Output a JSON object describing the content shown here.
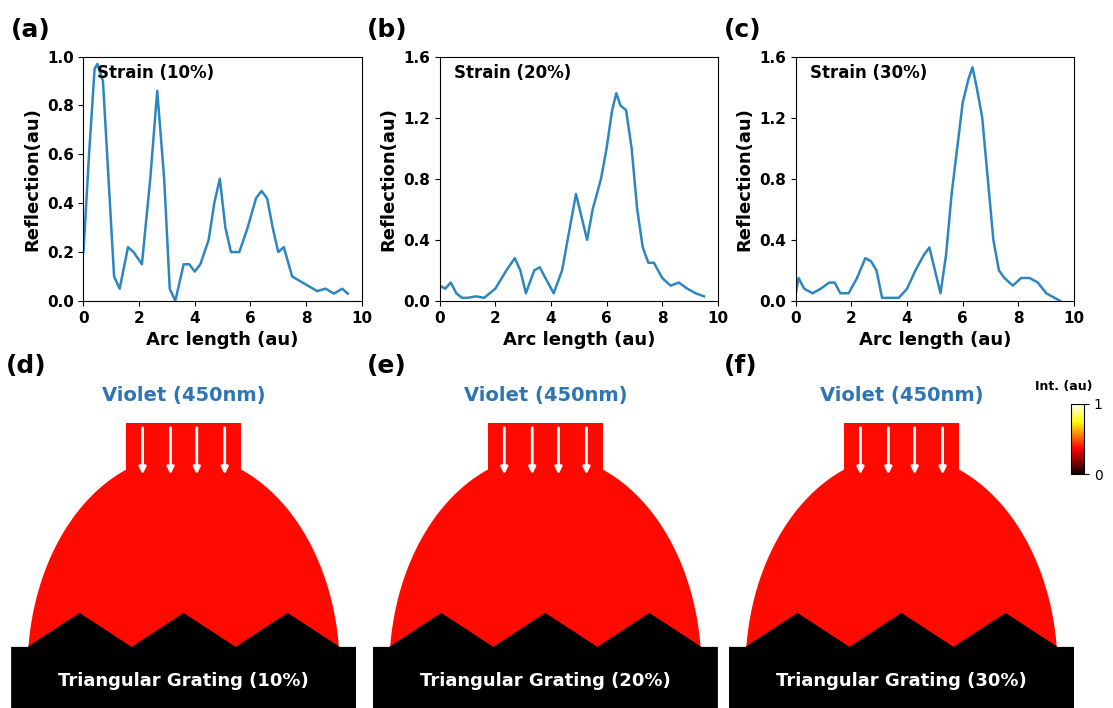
{
  "chart_data": [
    {
      "type": "line",
      "panel": "(a)",
      "annotation": "Strain (10%)",
      "x_label": "Arc length (au)",
      "y_label": "Reflection(au)",
      "xlim": [
        0,
        10
      ],
      "xticks": [
        0,
        2,
        4,
        6,
        8,
        10
      ],
      "ylim": [
        0,
        1.0
      ],
      "yticks": [
        0.0,
        0.2,
        0.4,
        0.6,
        0.8,
        1.0
      ],
      "series": [
        {
          "color": "#2e86c1",
          "x": [
            0,
            0.2,
            0.4,
            0.5,
            0.7,
            0.9,
            1.1,
            1.3,
            1.6,
            1.8,
            2.1,
            2.4,
            2.65,
            2.9,
            3.1,
            3.3,
            3.6,
            3.8,
            4.0,
            4.2,
            4.5,
            4.7,
            4.9,
            5.1,
            5.3,
            5.6,
            5.9,
            6.2,
            6.4,
            6.6,
            6.8,
            7.0,
            7.2,
            7.5,
            7.8,
            8.1,
            8.4,
            8.7,
            9.0,
            9.3,
            9.5
          ],
          "values": [
            0.2,
            0.6,
            0.95,
            0.97,
            0.9,
            0.5,
            0.1,
            0.05,
            0.22,
            0.2,
            0.15,
            0.5,
            0.86,
            0.5,
            0.05,
            0.0,
            0.15,
            0.15,
            0.12,
            0.15,
            0.25,
            0.4,
            0.5,
            0.3,
            0.2,
            0.2,
            0.3,
            0.42,
            0.45,
            0.42,
            0.3,
            0.2,
            0.22,
            0.1,
            0.08,
            0.06,
            0.04,
            0.05,
            0.03,
            0.05,
            0.03
          ]
        }
      ]
    },
    {
      "type": "line",
      "panel": "(b)",
      "annotation": "Strain (20%)",
      "x_label": "Arc length (au)",
      "y_label": "Reflection(au)",
      "xlim": [
        0,
        10
      ],
      "xticks": [
        0,
        2,
        4,
        6,
        8,
        10
      ],
      "ylim": [
        0,
        1.6
      ],
      "yticks": [
        0.0,
        0.4,
        0.8,
        1.2,
        1.6
      ],
      "series": [
        {
          "color": "#2e86c1",
          "x": [
            0,
            0.2,
            0.4,
            0.6,
            0.8,
            1.0,
            1.3,
            1.6,
            2.0,
            2.4,
            2.7,
            2.9,
            3.1,
            3.4,
            3.6,
            3.8,
            4.1,
            4.4,
            4.7,
            4.9,
            5.1,
            5.3,
            5.5,
            5.8,
            6.0,
            6.2,
            6.35,
            6.5,
            6.7,
            6.9,
            7.1,
            7.3,
            7.5,
            7.7,
            8.0,
            8.3,
            8.6,
            8.9,
            9.2,
            9.5
          ],
          "values": [
            0.1,
            0.08,
            0.12,
            0.05,
            0.02,
            0.02,
            0.03,
            0.02,
            0.08,
            0.2,
            0.28,
            0.2,
            0.05,
            0.2,
            0.22,
            0.15,
            0.05,
            0.2,
            0.5,
            0.7,
            0.55,
            0.4,
            0.6,
            0.8,
            1.0,
            1.25,
            1.36,
            1.28,
            1.25,
            1.0,
            0.6,
            0.35,
            0.25,
            0.25,
            0.15,
            0.1,
            0.12,
            0.08,
            0.05,
            0.03
          ]
        }
      ]
    },
    {
      "type": "line",
      "panel": "(c)",
      "annotation": "Strain (30%)",
      "x_label": "Arc length (au)",
      "y_label": "Reflection(au)",
      "xlim": [
        0,
        10
      ],
      "xticks": [
        0,
        2,
        4,
        6,
        8,
        10
      ],
      "ylim": [
        0,
        1.6
      ],
      "yticks": [
        0.0,
        0.4,
        0.8,
        1.2,
        1.6
      ],
      "series": [
        {
          "color": "#2e86c1",
          "x": [
            0,
            0.1,
            0.3,
            0.6,
            0.9,
            1.2,
            1.4,
            1.6,
            1.9,
            2.2,
            2.5,
            2.7,
            2.9,
            3.1,
            3.4,
            3.7,
            4.0,
            4.3,
            4.6,
            4.8,
            5.0,
            5.2,
            5.4,
            5.6,
            5.8,
            6.0,
            6.2,
            6.35,
            6.5,
            6.7,
            6.9,
            7.1,
            7.3,
            7.5,
            7.8,
            8.1,
            8.4,
            8.7,
            9.0,
            9.3,
            9.5
          ],
          "values": [
            0.05,
            0.15,
            0.08,
            0.05,
            0.08,
            0.12,
            0.12,
            0.05,
            0.05,
            0.15,
            0.28,
            0.26,
            0.2,
            0.02,
            0.02,
            0.02,
            0.08,
            0.2,
            0.3,
            0.35,
            0.2,
            0.05,
            0.3,
            0.7,
            1.0,
            1.3,
            1.45,
            1.53,
            1.4,
            1.2,
            0.8,
            0.4,
            0.2,
            0.15,
            0.1,
            0.15,
            0.15,
            0.12,
            0.05,
            0.02,
            0.0
          ]
        }
      ]
    }
  ],
  "diagrams": [
    {
      "panel": "(d)",
      "source": "Violet (450nm)",
      "label": "Triangular Grating (10%)"
    },
    {
      "panel": "(e)",
      "source": "Violet (450nm)",
      "label": "Triangular Grating (20%)"
    },
    {
      "panel": "(f)",
      "source": "Violet (450nm)",
      "label": "Triangular Grating (30%)"
    }
  ],
  "colorbar": {
    "label": "Int. (au)",
    "range": [
      0,
      1
    ],
    "ticks": [
      0,
      1
    ]
  }
}
